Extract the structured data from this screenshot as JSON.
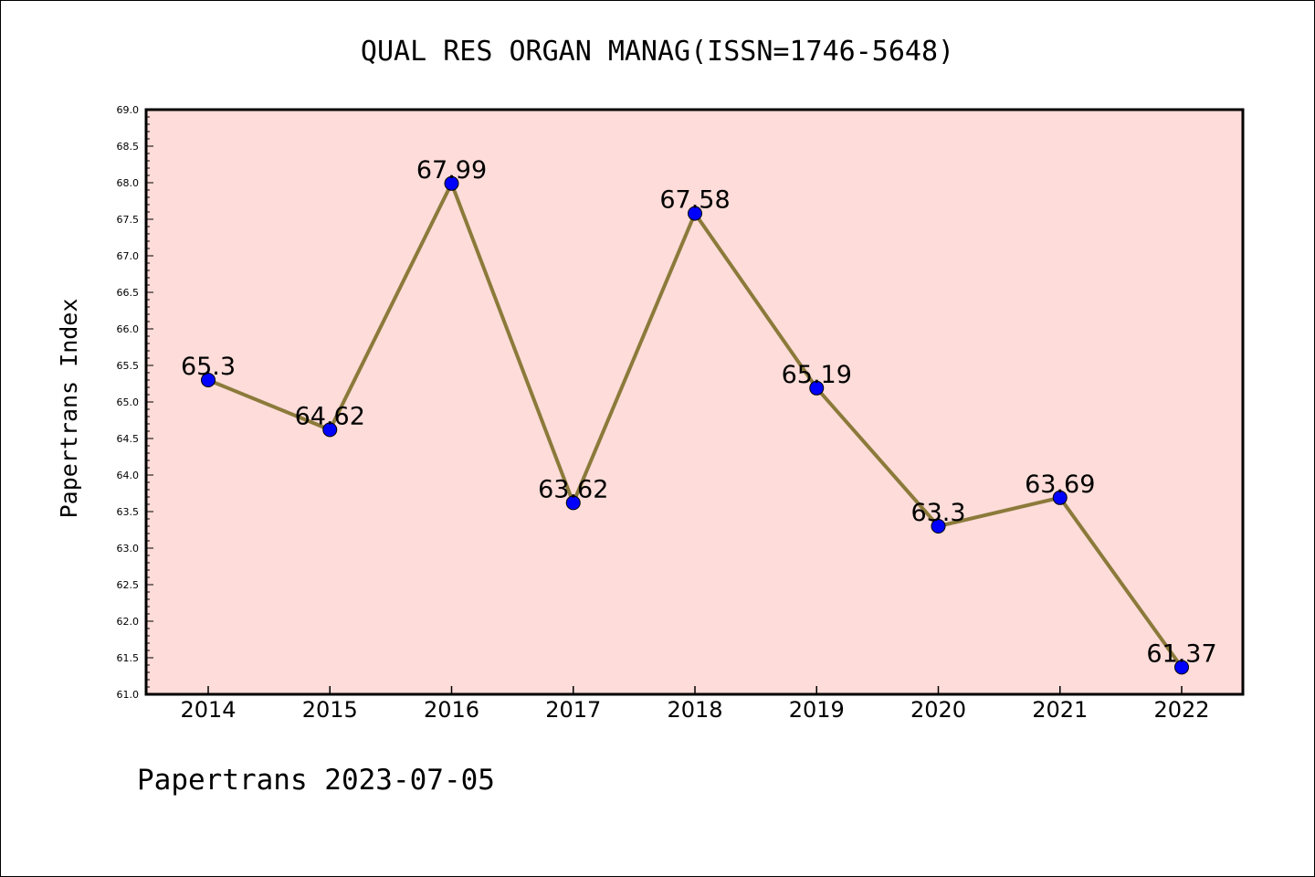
{
  "colors": {
    "plot_background": "#fddcd9",
    "line": "#8b7a3a",
    "marker": "#0000ff",
    "axis": "#000000"
  },
  "footer": "Papertrans 2023-07-05",
  "chart_data": {
    "type": "line",
    "title": "QUAL RES ORGAN MANAG(ISSN=1746-5648)",
    "xlabel": "",
    "ylabel": "Papertrans Index",
    "categories": [
      "2014",
      "2015",
      "2016",
      "2017",
      "2018",
      "2019",
      "2020",
      "2021",
      "2022"
    ],
    "values": [
      65.3,
      64.62,
      67.99,
      63.62,
      67.58,
      65.19,
      63.3,
      63.69,
      61.37
    ],
    "data_labels": [
      "65.3",
      "64.62",
      "67.99",
      "63.62",
      "67.58",
      "65.19",
      "63.3",
      "63.69",
      "61.37"
    ],
    "ylim": [
      61.0,
      69.0
    ],
    "yticks": [
      "61.0",
      "61.5",
      "62.0",
      "62.5",
      "63.0",
      "63.5",
      "64.0",
      "64.5",
      "65.0",
      "65.5",
      "66.0",
      "66.5",
      "67.0",
      "67.5",
      "68.0",
      "68.5",
      "69.0"
    ],
    "grid": false,
    "legend": "none"
  }
}
